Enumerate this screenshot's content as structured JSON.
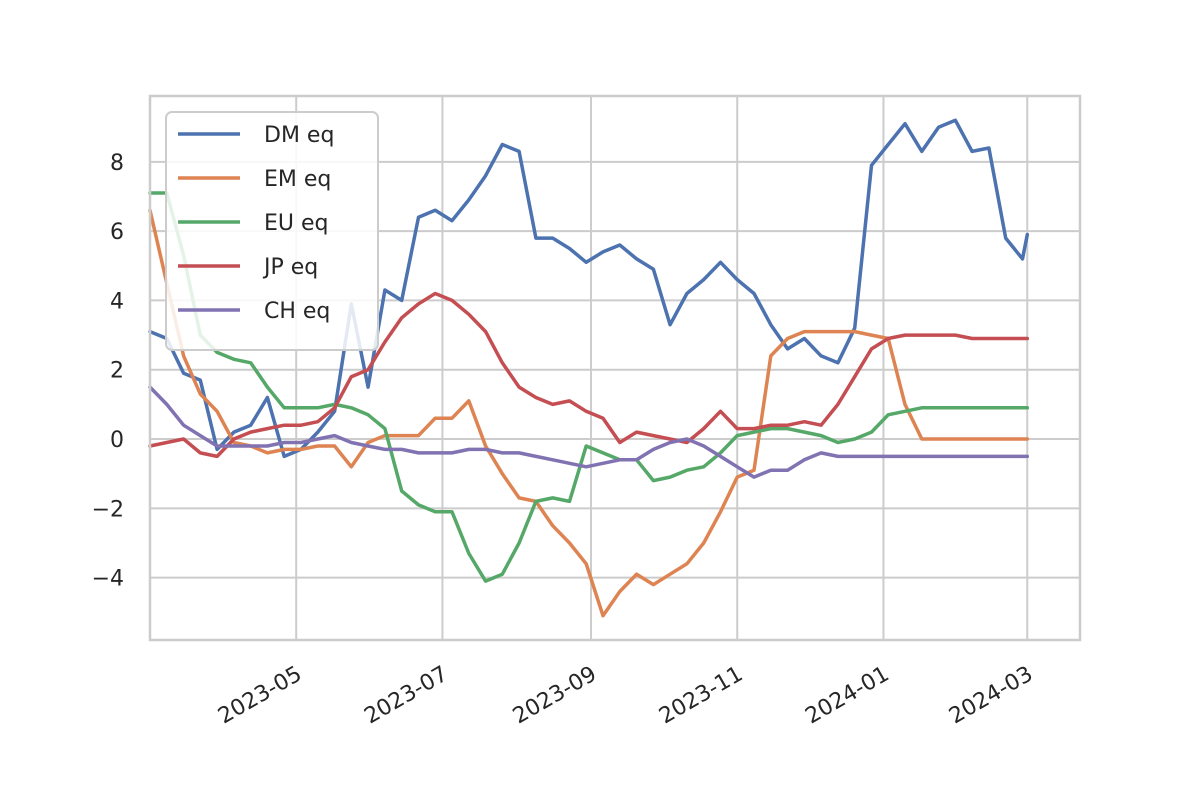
{
  "chart_data": {
    "type": "line",
    "title": "",
    "xlabel": "",
    "ylabel": "",
    "x_axis": "date",
    "xlim": [
      "2023-03-01",
      "2024-03-23"
    ],
    "ylim": [
      -5.8,
      9.9
    ],
    "x_ticks": [
      "2023-05",
      "2023-07",
      "2023-09",
      "2023-11",
      "2024-01",
      "2024-03"
    ],
    "y_ticks": [
      -4,
      -2,
      0,
      2,
      4,
      6,
      8
    ],
    "y_tick_labels": [
      "−4",
      "−2",
      "0",
      "2",
      "4",
      "6",
      "8"
    ],
    "grid": true,
    "legend_position": "upper-left",
    "x_dates": [
      "2023-03-01",
      "2023-03-08",
      "2023-03-15",
      "2023-03-22",
      "2023-03-29",
      "2023-04-05",
      "2023-04-12",
      "2023-04-19",
      "2023-04-26",
      "2023-05-03",
      "2023-05-10",
      "2023-05-17",
      "2023-05-24",
      "2023-05-31",
      "2023-06-07",
      "2023-06-14",
      "2023-06-21",
      "2023-06-28",
      "2023-07-05",
      "2023-07-12",
      "2023-07-19",
      "2023-07-26",
      "2023-08-02",
      "2023-08-09",
      "2023-08-16",
      "2023-08-23",
      "2023-08-30",
      "2023-09-06",
      "2023-09-13",
      "2023-09-20",
      "2023-09-27",
      "2023-10-04",
      "2023-10-11",
      "2023-10-18",
      "2023-10-25",
      "2023-11-01",
      "2023-11-08",
      "2023-11-15",
      "2023-11-22",
      "2023-11-29",
      "2023-12-06",
      "2023-12-13",
      "2023-12-20",
      "2023-12-27",
      "2024-01-03",
      "2024-01-10",
      "2024-01-17",
      "2024-01-24",
      "2024-01-31",
      "2024-02-07",
      "2024-02-14",
      "2024-02-21",
      "2024-02-28",
      "2024-03-01"
    ],
    "series": [
      {
        "name": "DM eq",
        "color": "#4c72b0",
        "values": [
          3.1,
          2.9,
          1.9,
          1.7,
          -0.3,
          0.2,
          0.4,
          1.2,
          -0.5,
          -0.3,
          0.2,
          0.8,
          3.9,
          1.5,
          4.3,
          4.0,
          6.4,
          6.6,
          6.3,
          6.9,
          7.6,
          8.5,
          8.3,
          5.8,
          5.8,
          5.5,
          5.1,
          5.4,
          5.6,
          5.2,
          4.9,
          3.3,
          4.2,
          4.6,
          5.1,
          4.6,
          4.2,
          3.3,
          2.6,
          2.9,
          2.4,
          2.2,
          3.2,
          7.9,
          8.5,
          9.1,
          8.3,
          9.0,
          9.2,
          8.3,
          8.4,
          5.8,
          5.2,
          5.9
        ]
      },
      {
        "name": "EM eq",
        "color": "#dd8452",
        "values": [
          6.6,
          4.5,
          2.4,
          1.3,
          0.8,
          -0.1,
          -0.2,
          -0.4,
          -0.3,
          -0.3,
          -0.2,
          -0.2,
          -0.8,
          -0.1,
          0.1,
          0.1,
          0.1,
          0.6,
          0.6,
          1.1,
          -0.2,
          -1.0,
          -1.7,
          -1.8,
          -2.5,
          -3.0,
          -3.6,
          -5.1,
          -4.4,
          -3.9,
          -4.2,
          -3.9,
          -3.6,
          -3.0,
          -2.1,
          -1.1,
          -0.9,
          2.4,
          2.9,
          3.1,
          3.1,
          3.1,
          3.1,
          3.0,
          2.9,
          1.0,
          0.0,
          0.0,
          0.0,
          0.0,
          0.0,
          0.0,
          0.0,
          0.0
        ]
      },
      {
        "name": "EU eq",
        "color": "#55a868",
        "values": [
          7.1,
          7.1,
          5.3,
          3.0,
          2.5,
          2.3,
          2.2,
          1.5,
          0.9,
          0.9,
          0.9,
          1.0,
          0.9,
          0.7,
          0.3,
          -1.5,
          -1.9,
          -2.1,
          -2.1,
          -3.3,
          -4.1,
          -3.9,
          -3.0,
          -1.8,
          -1.7,
          -1.8,
          -0.2,
          -0.4,
          -0.6,
          -0.6,
          -1.2,
          -1.1,
          -0.9,
          -0.8,
          -0.4,
          0.1,
          0.2,
          0.3,
          0.3,
          0.2,
          0.1,
          -0.1,
          0.0,
          0.2,
          0.7,
          0.8,
          0.9,
          0.9,
          0.9,
          0.9,
          0.9,
          0.9,
          0.9,
          0.9
        ]
      },
      {
        "name": "JP eq",
        "color": "#c44e52",
        "values": [
          -0.2,
          -0.1,
          0.0,
          -0.4,
          -0.5,
          0.0,
          0.2,
          0.3,
          0.4,
          0.4,
          0.5,
          0.9,
          1.8,
          2.0,
          2.8,
          3.5,
          3.9,
          4.2,
          4.0,
          3.6,
          3.1,
          2.2,
          1.5,
          1.2,
          1.0,
          1.1,
          0.8,
          0.6,
          -0.1,
          0.2,
          0.1,
          0.0,
          -0.1,
          0.3,
          0.8,
          0.3,
          0.3,
          0.4,
          0.4,
          0.5,
          0.4,
          1.0,
          1.8,
          2.6,
          2.9,
          3.0,
          3.0,
          3.0,
          3.0,
          2.9,
          2.9,
          2.9,
          2.9,
          2.9
        ]
      },
      {
        "name": "CH eq",
        "color": "#8172b2",
        "values": [
          1.5,
          1.0,
          0.4,
          0.1,
          -0.2,
          -0.2,
          -0.2,
          -0.2,
          -0.1,
          -0.1,
          0.0,
          0.1,
          -0.1,
          -0.2,
          -0.3,
          -0.3,
          -0.4,
          -0.4,
          -0.4,
          -0.3,
          -0.3,
          -0.4,
          -0.4,
          -0.5,
          -0.6,
          -0.7,
          -0.8,
          -0.7,
          -0.6,
          -0.6,
          -0.3,
          -0.1,
          0.0,
          -0.2,
          -0.5,
          -0.8,
          -1.1,
          -0.9,
          -0.9,
          -0.6,
          -0.4,
          -0.5,
          -0.5,
          -0.5,
          -0.5,
          -0.5,
          -0.5,
          -0.5,
          -0.5,
          -0.5,
          -0.5,
          -0.5,
          -0.5,
          -0.5
        ]
      }
    ]
  }
}
